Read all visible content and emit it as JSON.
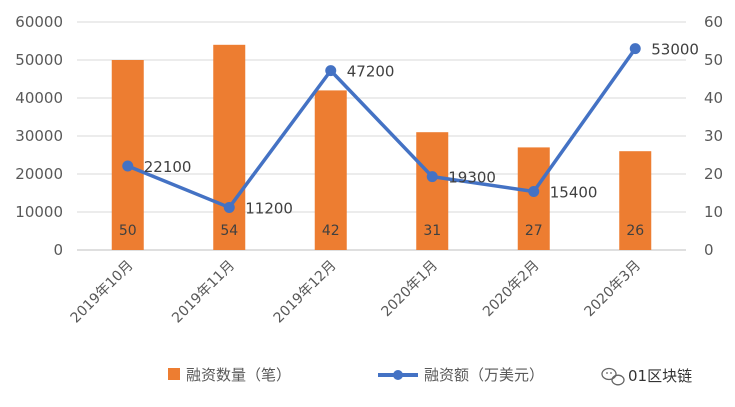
{
  "chart_data": {
    "type": "bar",
    "categories": [
      "2019年10月",
      "2019年11月",
      "2019年12月",
      "2020年1月",
      "2020年2月",
      "2020年3月"
    ],
    "series": [
      {
        "name": "融资数量（笔）",
        "type": "bar",
        "axis": "right",
        "values": [
          50,
          54,
          42,
          31,
          27,
          26
        ],
        "color": "#ED7D31"
      },
      {
        "name": "融资额（万美元）",
        "type": "line",
        "axis": "left",
        "values": [
          22100,
          11200,
          47200,
          19300,
          15400,
          53000
        ],
        "color": "#4472C4"
      }
    ],
    "y_left": {
      "ticks": [
        0,
        10000,
        20000,
        30000,
        40000,
        50000,
        60000
      ],
      "ylim": [
        0,
        60000
      ]
    },
    "y_right": {
      "ticks": [
        0,
        10,
        20,
        30,
        40,
        50,
        60
      ],
      "ylim": [
        0,
        60
      ]
    },
    "grid": true,
    "legend_position": "bottom"
  },
  "watermark": {
    "text": "01区块链",
    "icon": "wechat-icon"
  }
}
